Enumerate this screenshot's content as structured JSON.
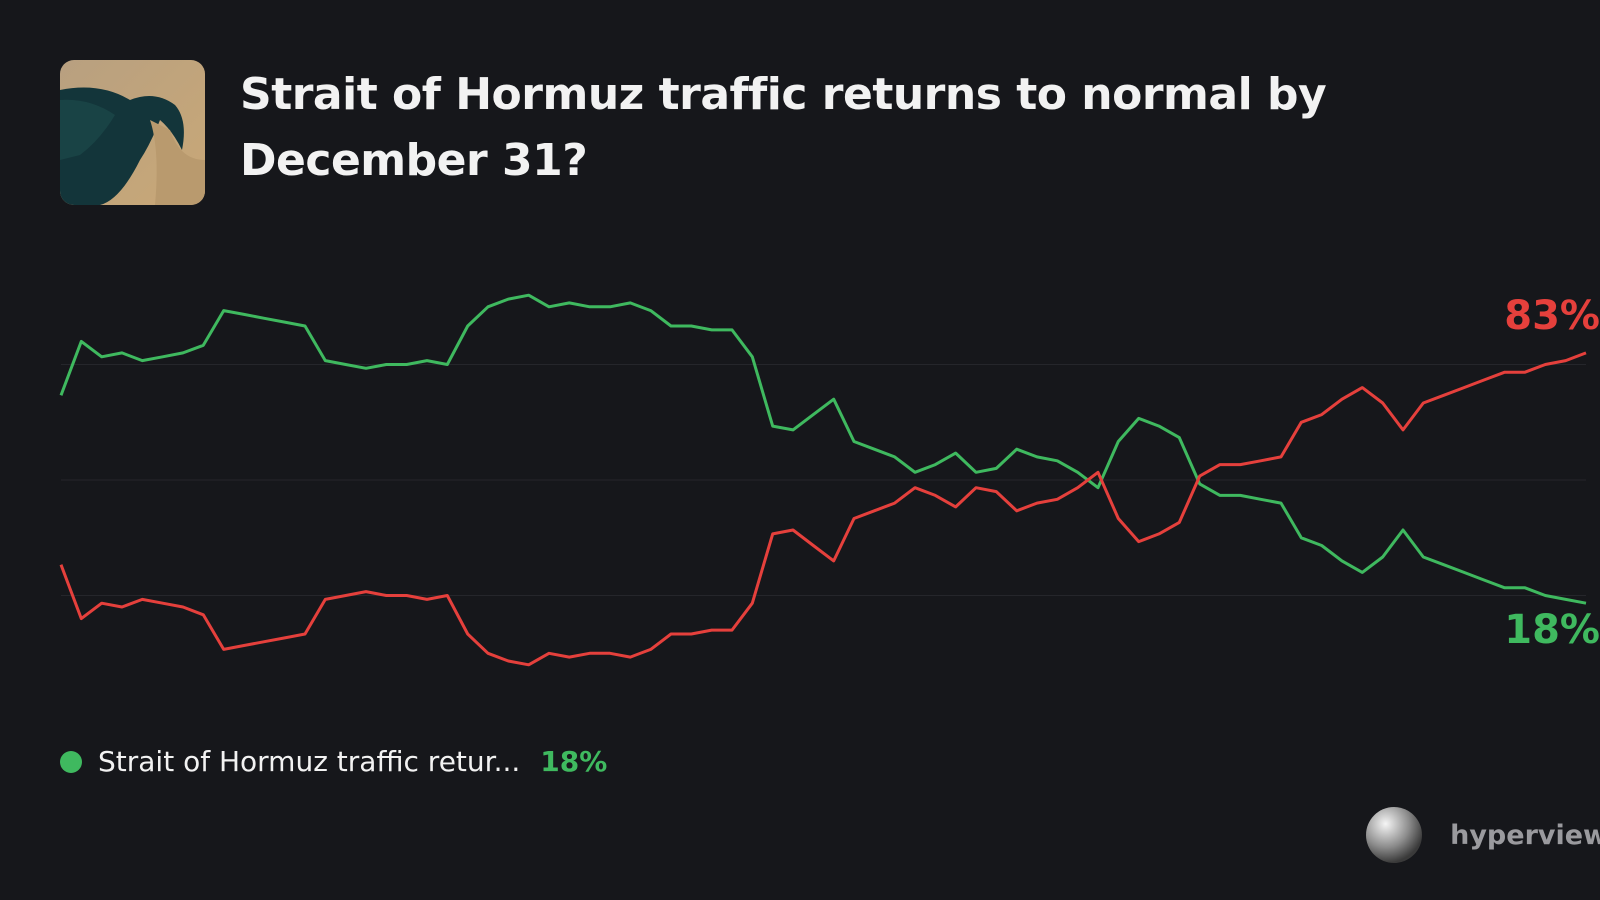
{
  "chart_data": {
    "type": "line",
    "title": "Strait of Hormuz traffic returns to normal by December 31?",
    "ylim": [
      0,
      100
    ],
    "yticks": [
      20,
      50,
      80
    ],
    "grid": true,
    "series": [
      {
        "name": "Strait of Hormuz traffic retur...",
        "color": "#3fb95f",
        "last_label": "18%",
        "values": [
          72,
          86,
          82,
          83,
          81,
          82,
          83,
          85,
          94,
          93,
          92,
          91,
          90,
          81,
          80,
          79,
          80,
          80,
          81,
          80,
          90,
          95,
          97,
          98,
          95,
          96,
          95,
          95,
          96,
          94,
          90,
          90,
          89,
          89,
          82,
          64,
          63,
          67,
          71,
          60,
          58,
          56,
          52,
          54,
          57,
          52,
          53,
          58,
          56,
          55,
          52,
          48,
          60,
          66,
          64,
          61,
          49,
          46,
          46,
          45,
          44,
          35,
          33,
          29,
          26,
          30,
          37,
          30,
          28,
          26,
          24,
          22,
          22,
          20,
          19,
          18
        ]
      },
      {
        "color": "#e5403c",
        "last_label": "83%",
        "values": [
          28,
          14,
          18,
          17,
          19,
          18,
          17,
          15,
          6,
          7,
          8,
          9,
          10,
          19,
          20,
          21,
          20,
          20,
          19,
          20,
          10,
          5,
          3,
          2,
          5,
          4,
          5,
          5,
          4,
          6,
          10,
          10,
          11,
          11,
          18,
          36,
          37,
          33,
          29,
          40,
          42,
          44,
          48,
          46,
          43,
          48,
          47,
          42,
          44,
          45,
          48,
          52,
          40,
          34,
          36,
          39,
          51,
          54,
          54,
          55,
          56,
          65,
          67,
          71,
          74,
          70,
          63,
          70,
          72,
          74,
          76,
          78,
          78,
          80,
          81,
          83
        ]
      }
    ]
  },
  "watermark": "hyperview"
}
